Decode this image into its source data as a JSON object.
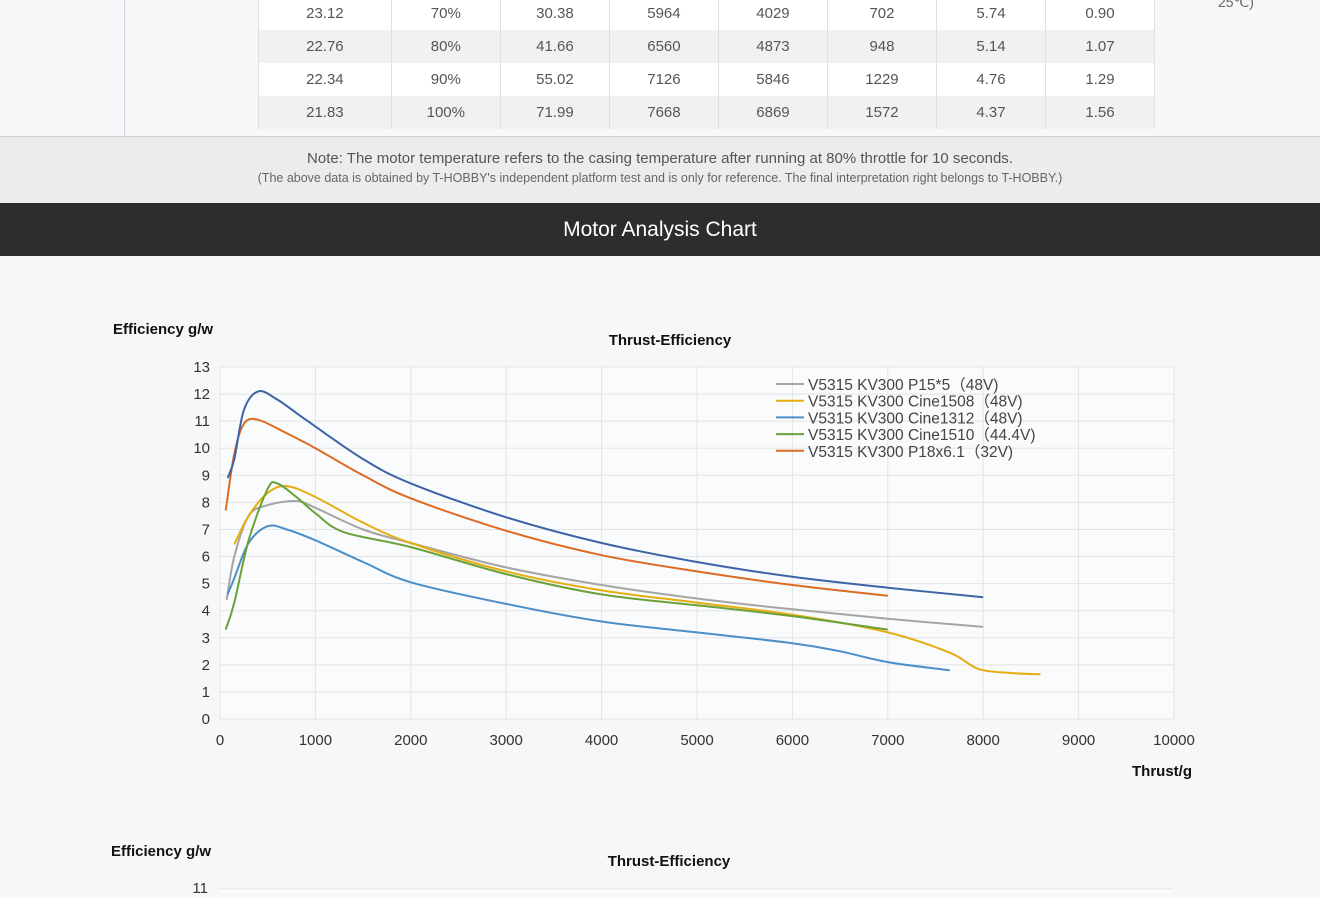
{
  "table": {
    "rows": [
      [
        "23.12",
        "70%",
        "30.38",
        "5964",
        "4029",
        "702",
        "5.74",
        "0.90"
      ],
      [
        "22.76",
        "80%",
        "41.66",
        "6560",
        "4873",
        "948",
        "5.14",
        "1.07"
      ],
      [
        "22.34",
        "90%",
        "55.02",
        "7126",
        "5846",
        "1229",
        "4.76",
        "1.29"
      ],
      [
        "21.83",
        "100%",
        "71.99",
        "7668",
        "6869",
        "1572",
        "4.37",
        "1.56"
      ]
    ],
    "cut_text": "25℃)"
  },
  "note": {
    "line1": "Note: The motor temperature refers to the casing temperature after running at 80% throttle for 10 seconds.",
    "line2": "(The above data is obtained by T-HOBBY's independent platform test and is only for reference. The final interpretation right belongs to T-HOBBY.)"
  },
  "section_title": "Motor Analysis Chart",
  "chart_data": [
    {
      "type": "line",
      "title": "Thrust-Efficiency",
      "xlabel": "Thrust/g",
      "ylabel": "Efficiency g/w",
      "xlim": [
        0,
        10000
      ],
      "ylim": [
        0,
        13
      ],
      "xticks": [
        "0",
        "1000",
        "2000",
        "3000",
        "4000",
        "5000",
        "6000",
        "7000",
        "8000",
        "9000",
        "10000"
      ],
      "yticks": [
        "0",
        "1",
        "2",
        "3",
        "4",
        "5",
        "6",
        "7",
        "8",
        "9",
        "10",
        "11",
        "12",
        "13"
      ],
      "grid": true,
      "legend_position": "top-right",
      "series": [
        {
          "name": "V5315 KV300 P15*5（48V)",
          "color": "#a5a5a5",
          "points": [
            [
              70,
              4.4
            ],
            [
              150,
              6.0
            ],
            [
              300,
              7.5
            ],
            [
              500,
              7.9
            ],
            [
              800,
              8.05
            ],
            [
              1000,
              7.8
            ],
            [
              1500,
              7.0
            ],
            [
              2000,
              6.5
            ],
            [
              3000,
              5.6
            ],
            [
              4000,
              4.95
            ],
            [
              5000,
              4.45
            ],
            [
              6000,
              4.05
            ],
            [
              7000,
              3.7
            ],
            [
              8000,
              3.4
            ]
          ]
        },
        {
          "name": "V5315 KV300 Cine1508（48V)",
          "color": "#e6ad12",
          "points": [
            [
              150,
              6.45
            ],
            [
              300,
              7.5
            ],
            [
              500,
              8.35
            ],
            [
              700,
              8.6
            ],
            [
              1000,
              8.2
            ],
            [
              1500,
              7.25
            ],
            [
              2000,
              6.5
            ],
            [
              3000,
              5.45
            ],
            [
              4000,
              4.75
            ],
            [
              5000,
              4.3
            ],
            [
              6000,
              3.85
            ],
            [
              7000,
              3.2
            ],
            [
              7650,
              2.45
            ],
            [
              7950,
              1.85
            ],
            [
              8300,
              1.7
            ],
            [
              8600,
              1.65
            ]
          ]
        },
        {
          "name": "V5315 KV300 Cine1312（48V)",
          "color": "#4a8fc7",
          "points": [
            [
              80,
              4.6
            ],
            [
              150,
              5.2
            ],
            [
              300,
              6.5
            ],
            [
              500,
              7.12
            ],
            [
              700,
              7.0
            ],
            [
              1000,
              6.6
            ],
            [
              1500,
              5.8
            ],
            [
              2000,
              5.05
            ],
            [
              3000,
              4.25
            ],
            [
              4000,
              3.6
            ],
            [
              5000,
              3.2
            ],
            [
              6000,
              2.8
            ],
            [
              6500,
              2.5
            ],
            [
              7000,
              2.1
            ],
            [
              7650,
              1.8
            ]
          ]
        },
        {
          "name": "V5315 KV300 Cine1510（44.4V)",
          "color": "#6aa138",
          "points": [
            [
              60,
              3.3
            ],
            [
              150,
              4.3
            ],
            [
              300,
              6.6
            ],
            [
              500,
              8.5
            ],
            [
              600,
              8.7
            ],
            [
              800,
              8.2
            ],
            [
              1000,
              7.6
            ],
            [
              1300,
              6.9
            ],
            [
              2000,
              6.35
            ],
            [
              3000,
              5.35
            ],
            [
              4000,
              4.6
            ],
            [
              5000,
              4.2
            ],
            [
              6000,
              3.8
            ],
            [
              7000,
              3.3
            ]
          ]
        },
        {
          "name": "V5315 KV300 P18x6.1（32V)",
          "color": "#dd6b24",
          "points": [
            [
              60,
              7.7
            ],
            [
              150,
              9.8
            ],
            [
              250,
              10.9
            ],
            [
              400,
              11.05
            ],
            [
              700,
              10.55
            ],
            [
              1000,
              10.0
            ],
            [
              1500,
              9.0
            ],
            [
              2000,
              8.15
            ],
            [
              3000,
              6.95
            ],
            [
              4000,
              6.05
            ],
            [
              5000,
              5.45
            ],
            [
              6000,
              4.95
            ],
            [
              7000,
              4.55
            ]
          ]
        },
        {
          "name": "",
          "color": "#3c64a6",
          "points": [
            [
              80,
              8.9
            ],
            [
              150,
              9.6
            ],
            [
              250,
              11.4
            ],
            [
              400,
              12.1
            ],
            [
              600,
              11.8
            ],
            [
              900,
              11.05
            ],
            [
              1500,
              9.6
            ],
            [
              2000,
              8.7
            ],
            [
              3000,
              7.45
            ],
            [
              4000,
              6.5
            ],
            [
              5000,
              5.8
            ],
            [
              6000,
              5.25
            ],
            [
              7000,
              4.85
            ],
            [
              8000,
              4.5
            ]
          ]
        }
      ]
    },
    {
      "type": "line",
      "title": "Thrust-Efficiency",
      "ylabel": "Efficiency g/w",
      "yticks_visible": [
        "11"
      ]
    }
  ]
}
